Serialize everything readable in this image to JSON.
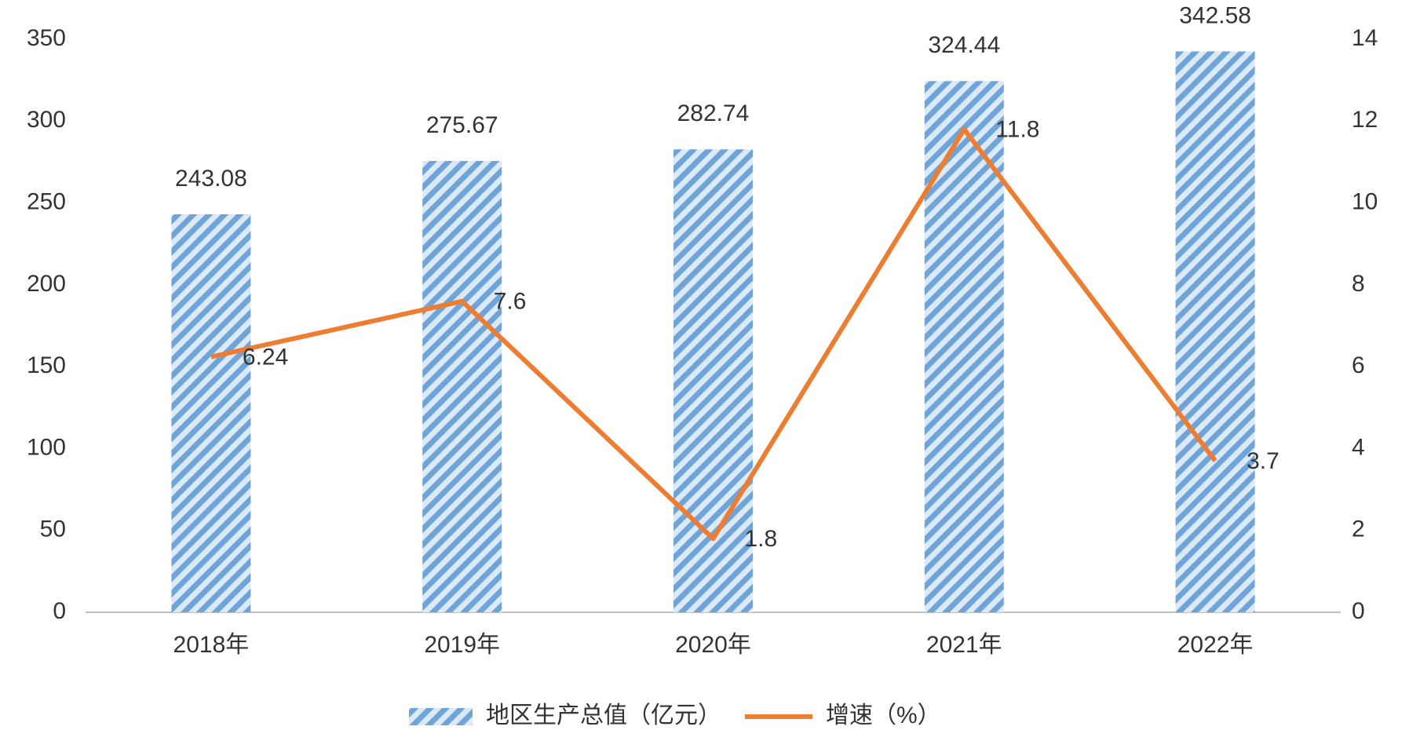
{
  "chart_data": {
    "type": "bar",
    "categories": [
      "2018年",
      "2019年",
      "2020年",
      "2021年",
      "2022年"
    ],
    "series": [
      {
        "name": "地区生产总值（亿元）",
        "type": "bar",
        "color": "#5b9bd5",
        "values": [
          243.08,
          275.67,
          282.74,
          324.44,
          342.58
        ]
      },
      {
        "name": "增速（%）",
        "type": "line",
        "axis": "y2",
        "color": "#ed7d31",
        "values": [
          6.24,
          7.6,
          1.8,
          11.8,
          3.7
        ]
      }
    ],
    "ylim": [
      0,
      350
    ],
    "yticks": [
      0,
      50,
      100,
      150,
      200,
      250,
      300,
      350
    ],
    "y2lim": [
      0,
      14
    ],
    "y2ticks": [
      0,
      2,
      4,
      6,
      8,
      10,
      12,
      14
    ],
    "grid": false,
    "legend": "bottom"
  }
}
